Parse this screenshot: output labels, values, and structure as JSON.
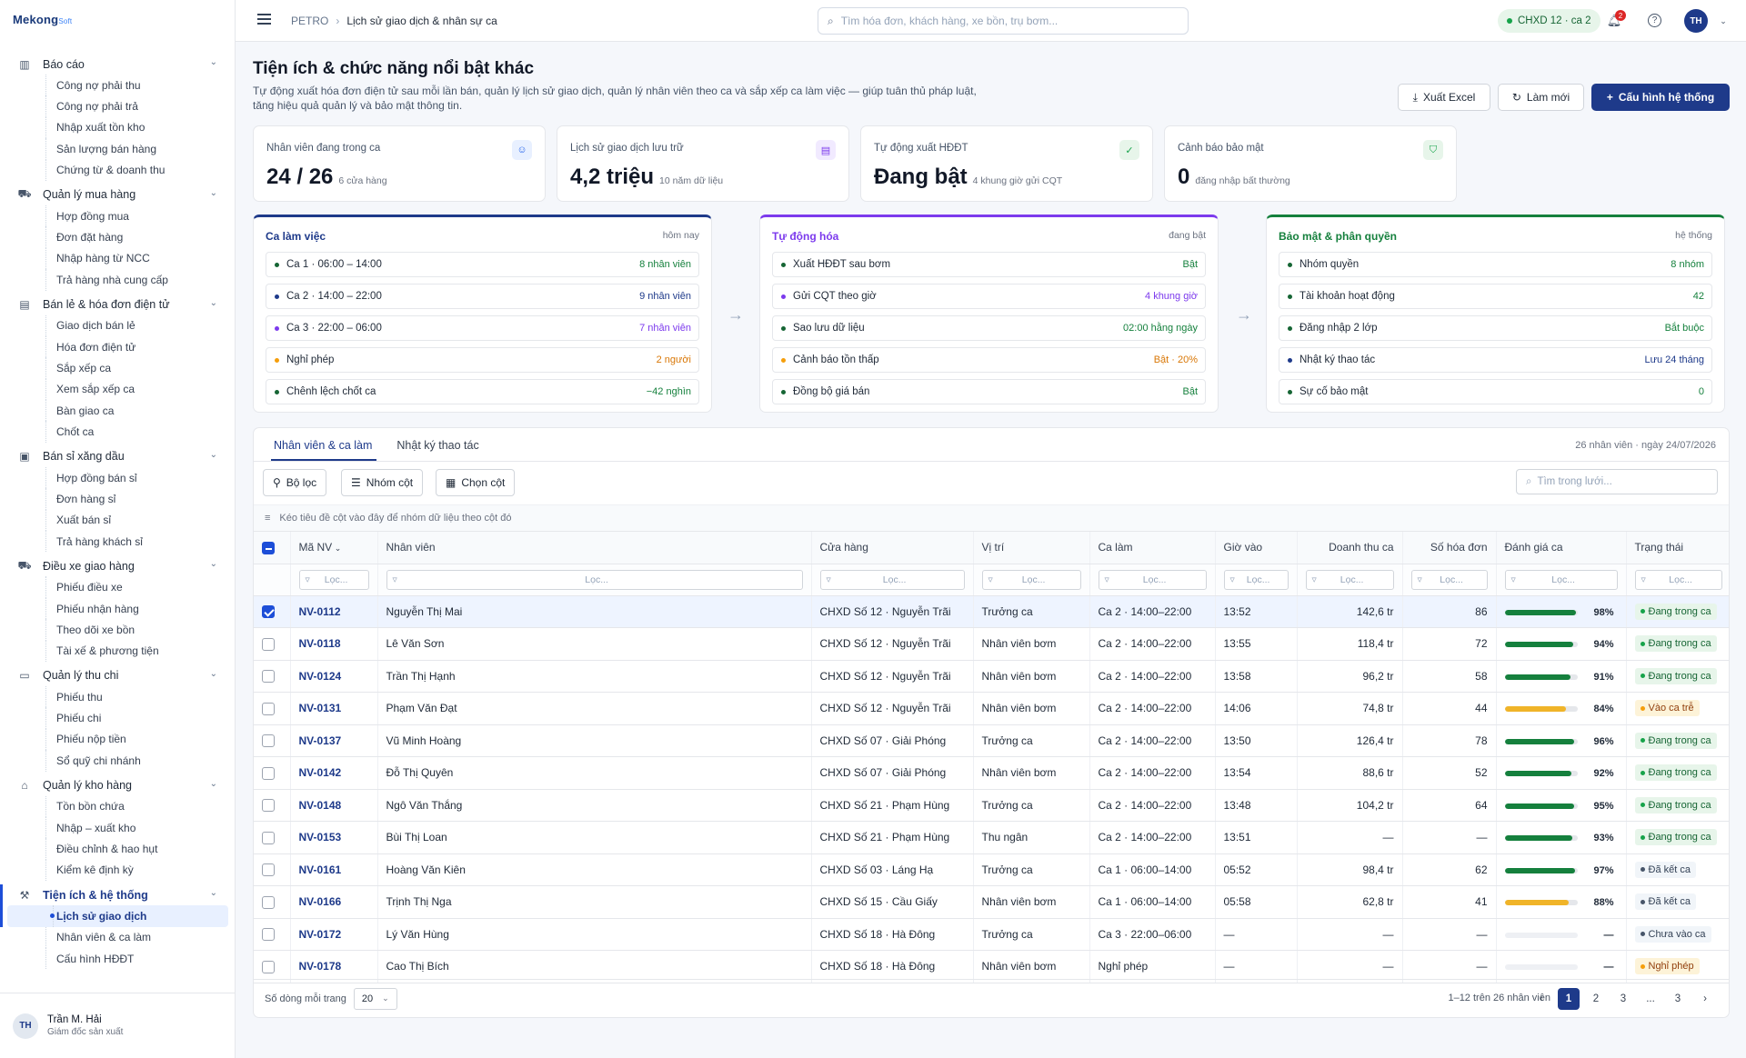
{
  "app": {
    "brand": "Mekong",
    "brand_suffix": "Soft"
  },
  "sidebar": {
    "groups": [
      {
        "label": "Báo cáo",
        "icon": "bar-chart-icon",
        "items": [
          "Công nợ phải thu",
          "Công nợ phải trả",
          "Nhập xuất tồn kho",
          "Sản lượng bán hàng",
          "Chứng từ & doanh thu"
        ]
      },
      {
        "label": "Quản lý mua hàng",
        "icon": "cart-icon",
        "items": [
          "Hợp đồng mua",
          "Đơn đặt hàng",
          "Nhập hàng từ NCC",
          "Trả hàng nhà cung cấp"
        ]
      },
      {
        "label": "Bán lẻ & hóa đơn điện tử",
        "icon": "store-icon",
        "items": [
          "Giao dịch bán lẻ",
          "Hóa đơn điện tử",
          "Sắp xếp ca",
          "Xem sắp xếp ca",
          "Bàn giao ca",
          "Chốt ca"
        ]
      },
      {
        "label": "Bán sỉ xăng dầu",
        "icon": "wallet-icon",
        "items": [
          "Hợp đồng bán sỉ",
          "Đơn hàng sỉ",
          "Xuất bán sỉ",
          "Trả hàng khách sỉ"
        ]
      },
      {
        "label": "Điều xe giao hàng",
        "icon": "truck-icon",
        "items": [
          "Phiếu điều xe",
          "Phiếu nhận hàng",
          "Theo dõi xe bồn",
          "Tài xế & phương tiện"
        ]
      },
      {
        "label": "Quản lý thu chi",
        "icon": "card-icon",
        "items": [
          "Phiếu thu",
          "Phiếu chi",
          "Phiếu nộp tiền",
          "Sổ quỹ chi nhánh"
        ]
      },
      {
        "label": "Quản lý kho hàng",
        "icon": "warehouse-icon",
        "items": [
          "Tồn bồn chứa",
          "Nhập – xuất kho",
          "Điều chỉnh & hao hụt",
          "Kiểm kê định kỳ"
        ]
      },
      {
        "label": "Tiện ích & hệ thống",
        "icon": "tools-icon",
        "active": true,
        "items": [
          "Lịch sử giao dịch",
          "Nhân viên & ca làm",
          "Cấu hình HĐĐT"
        ]
      }
    ],
    "active_item": "Lịch sử giao dịch",
    "user": {
      "initials": "TH",
      "name": "Trần M. Hải",
      "role": "Giám đốc sản xuất"
    }
  },
  "topbar": {
    "breadcrumb_root": "PETRO",
    "breadcrumb_current": "Lịch sử giao dịch & nhân sự ca",
    "search_placeholder": "Tìm hóa đơn, khách hàng, xe bồn, trụ bơm...",
    "station_pill": "CHXD 12 · ca 2",
    "notif_count": "2",
    "user_initials": "TH"
  },
  "page": {
    "title": "Tiện ích & chức năng nổi bật khác",
    "description": "Tự động xuất hóa đơn điện tử sau mỗi lần bán, quản lý lịch sử giao dịch, quản lý nhân viên theo ca và sắp xếp ca làm việc — giúp tuân thủ pháp luật, tăng hiệu quả quản lý và bảo mật thông tin.",
    "btn_export": "Xuất Excel",
    "btn_refresh": "Làm mới",
    "btn_config": "Cấu hình hệ thống"
  },
  "kpis": [
    {
      "label": "Nhân viên đang trong ca",
      "value": "24 / 26",
      "sub": "6 cửa hàng",
      "icon": "user-icon",
      "color": "#2563eb",
      "bg": "#e8f0ff"
    },
    {
      "label": "Lịch sử giao dịch lưu trữ",
      "value": "4,2 triệu",
      "sub": "10 năm dữ liệu",
      "icon": "document-icon",
      "color": "#7c3aed",
      "bg": "#f1eaff"
    },
    {
      "label": "Tự động xuất HĐĐT",
      "value": "Đang bật",
      "sub": "4 khung giờ gửi CQT",
      "icon": "check-circle-icon",
      "color": "#16a34a",
      "bg": "#e7f5ea"
    },
    {
      "label": "Cảnh báo bảo mật",
      "value": "0",
      "sub": "đăng nhập bất thường",
      "icon": "shield-icon",
      "color": "#16a34a",
      "bg": "#e7f5ea"
    }
  ],
  "cards": [
    {
      "title": "Ca làm việc",
      "meta": "hôm nay",
      "accent": "#1e3a8a",
      "rows": [
        {
          "label": "Ca 1 · 06:00 – 14:00",
          "value": "8 nhân viên",
          "dot": "#166534",
          "vcolor": "#15803d"
        },
        {
          "label": "Ca 2 · 14:00 – 22:00",
          "value": "9 nhân viên",
          "dot": "#1e3a8a",
          "vcolor": "#1e3a8a"
        },
        {
          "label": "Ca 3 · 22:00 – 06:00",
          "value": "7 nhân viên",
          "dot": "#7c3aed",
          "vcolor": "#7c3aed"
        },
        {
          "label": "Nghỉ phép",
          "value": "2 người",
          "dot": "#f59e0b",
          "vcolor": "#d97706"
        },
        {
          "label": "Chênh lệch chốt ca",
          "value": "−42 nghìn",
          "dot": "#166534",
          "vcolor": "#15803d"
        }
      ]
    },
    {
      "title": "Tự động hóa",
      "meta": "đang bật",
      "accent": "#7c3aed",
      "rows": [
        {
          "label": "Xuất HĐĐT sau bơm",
          "value": "Bật",
          "dot": "#166534",
          "vcolor": "#15803d"
        },
        {
          "label": "Gửi CQT theo giờ",
          "value": "4 khung giờ",
          "dot": "#7c3aed",
          "vcolor": "#7c3aed"
        },
        {
          "label": "Sao lưu dữ liệu",
          "value": "02:00 hằng ngày",
          "dot": "#166534",
          "vcolor": "#15803d"
        },
        {
          "label": "Cảnh báo tồn thấp",
          "value": "Bật · 20%",
          "dot": "#f59e0b",
          "vcolor": "#d97706"
        },
        {
          "label": "Đồng bộ giá bán",
          "value": "Bật",
          "dot": "#166534",
          "vcolor": "#15803d"
        }
      ]
    },
    {
      "title": "Bảo mật & phân quyền",
      "meta": "hệ thống",
      "accent": "#15803d",
      "rows": [
        {
          "label": "Nhóm quyền",
          "value": "8 nhóm",
          "dot": "#166534",
          "vcolor": "#15803d"
        },
        {
          "label": "Tài khoản hoạt động",
          "value": "42",
          "dot": "#166534",
          "vcolor": "#15803d"
        },
        {
          "label": "Đăng nhập 2 lớp",
          "value": "Bắt buộc",
          "dot": "#166534",
          "vcolor": "#15803d"
        },
        {
          "label": "Nhật ký thao tác",
          "value": "Lưu 24 tháng",
          "dot": "#1e3a8a",
          "vcolor": "#1e3a8a"
        },
        {
          "label": "Sự cố bảo mật",
          "value": "0",
          "dot": "#166534",
          "vcolor": "#15803d"
        }
      ]
    }
  ],
  "grid": {
    "tabs": [
      "Nhân viên & ca làm",
      "Nhật ký thao tác"
    ],
    "meta": "26 nhân viên · ngày 24/07/2026",
    "toolbar": [
      "Bộ lọc",
      "Nhóm cột",
      "Chọn cột"
    ],
    "search_placeholder": "Tìm trong lưới...",
    "group_hint": "Kéo tiêu đề cột vào đây để nhóm dữ liệu theo cột đó",
    "columns": [
      "Mã NV",
      "Nhân viên",
      "Cửa hàng",
      "Vị trí",
      "Ca làm",
      "Giờ vào",
      "Doanh thu ca",
      "Số hóa đơn",
      "Đánh giá ca",
      "Trạng thái"
    ],
    "filter_placeholder": "Lọc...",
    "rows": [
      {
        "code": "NV-0112",
        "name": "Nguyễn Thị Mai",
        "store": "CHXD Số 12 · Nguyễn Trãi",
        "role": "Trưởng ca",
        "shift": "Ca 2 · 14:00–22:00",
        "time": "13:52",
        "rev": "142,6 tr",
        "inv": "86",
        "score": 98,
        "score_label": "98%",
        "status": "Đang trong ca",
        "st": "green",
        "selected": true
      },
      {
        "code": "NV-0118",
        "name": "Lê Văn Sơn",
        "store": "CHXD Số 12 · Nguyễn Trãi",
        "role": "Nhân viên bơm",
        "shift": "Ca 2 · 14:00–22:00",
        "time": "13:55",
        "rev": "118,4 tr",
        "inv": "72",
        "score": 94,
        "score_label": "94%",
        "status": "Đang trong ca",
        "st": "green"
      },
      {
        "code": "NV-0124",
        "name": "Trần Thị Hạnh",
        "store": "CHXD Số 12 · Nguyễn Trãi",
        "role": "Nhân viên bơm",
        "shift": "Ca 2 · 14:00–22:00",
        "time": "13:58",
        "rev": "96,2 tr",
        "inv": "58",
        "score": 91,
        "score_label": "91%",
        "status": "Đang trong ca",
        "st": "green"
      },
      {
        "code": "NV-0131",
        "name": "Phạm Văn Đạt",
        "store": "CHXD Số 12 · Nguyễn Trãi",
        "role": "Nhân viên bơm",
        "shift": "Ca 2 · 14:00–22:00",
        "time": "14:06",
        "rev": "74,8 tr",
        "inv": "44",
        "score": 84,
        "score_label": "84%",
        "status": "Vào ca trễ",
        "st": "amber"
      },
      {
        "code": "NV-0137",
        "name": "Vũ Minh Hoàng",
        "store": "CHXD Số 07 · Giải Phóng",
        "role": "Trưởng ca",
        "shift": "Ca 2 · 14:00–22:00",
        "time": "13:50",
        "rev": "126,4 tr",
        "inv": "78",
        "score": 96,
        "score_label": "96%",
        "status": "Đang trong ca",
        "st": "green"
      },
      {
        "code": "NV-0142",
        "name": "Đỗ Thị Quyên",
        "store": "CHXD Số 07 · Giải Phóng",
        "role": "Nhân viên bơm",
        "shift": "Ca 2 · 14:00–22:00",
        "time": "13:54",
        "rev": "88,6 tr",
        "inv": "52",
        "score": 92,
        "score_label": "92%",
        "status": "Đang trong ca",
        "st": "green"
      },
      {
        "code": "NV-0148",
        "name": "Ngô Văn Thắng",
        "store": "CHXD Số 21 · Phạm Hùng",
        "role": "Trưởng ca",
        "shift": "Ca 2 · 14:00–22:00",
        "time": "13:48",
        "rev": "104,2 tr",
        "inv": "64",
        "score": 95,
        "score_label": "95%",
        "status": "Đang trong ca",
        "st": "green"
      },
      {
        "code": "NV-0153",
        "name": "Bùi Thị Loan",
        "store": "CHXD Số 21 · Phạm Hùng",
        "role": "Thu ngân",
        "shift": "Ca 2 · 14:00–22:00",
        "time": "13:51",
        "rev": "—",
        "inv": "—",
        "score": 93,
        "score_label": "93%",
        "status": "Đang trong ca",
        "st": "green"
      },
      {
        "code": "NV-0161",
        "name": "Hoàng Văn Kiên",
        "store": "CHXD Số 03 · Láng Hạ",
        "role": "Trưởng ca",
        "shift": "Ca 1 · 06:00–14:00",
        "time": "05:52",
        "rev": "98,4 tr",
        "inv": "62",
        "score": 97,
        "score_label": "97%",
        "status": "Đã kết ca",
        "st": "gray"
      },
      {
        "code": "NV-0166",
        "name": "Trịnh Thị Nga",
        "store": "CHXD Số 15 · Cầu Giấy",
        "role": "Nhân viên bơm",
        "shift": "Ca 1 · 06:00–14:00",
        "time": "05:58",
        "rev": "62,8 tr",
        "inv": "41",
        "score": 88,
        "score_label": "88%",
        "status": "Đã kết ca",
        "st": "gray"
      },
      {
        "code": "NV-0172",
        "name": "Lý Văn Hùng",
        "store": "CHXD Số 18 · Hà Đông",
        "role": "Trưởng ca",
        "shift": "Ca 3 · 22:00–06:00",
        "time": "—",
        "rev": "—",
        "inv": "—",
        "score": 0,
        "score_label": "—",
        "status": "Chưa vào ca",
        "st": "gray"
      },
      {
        "code": "NV-0178",
        "name": "Cao Thị Bích",
        "store": "CHXD Số 18 · Hà Đông",
        "role": "Nhân viên bơm",
        "shift": "Nghỉ phép",
        "time": "—",
        "rev": "—",
        "inv": "—",
        "score": 0,
        "score_label": "—",
        "status": "Nghỉ phép",
        "st": "amber"
      }
    ],
    "footer": {
      "rows_label": "Số dòng mỗi trang",
      "page_size": "20",
      "info": "1–12 trên 26 nhân viên",
      "pages": [
        "1",
        "2",
        "3",
        "...",
        "3"
      ]
    }
  }
}
